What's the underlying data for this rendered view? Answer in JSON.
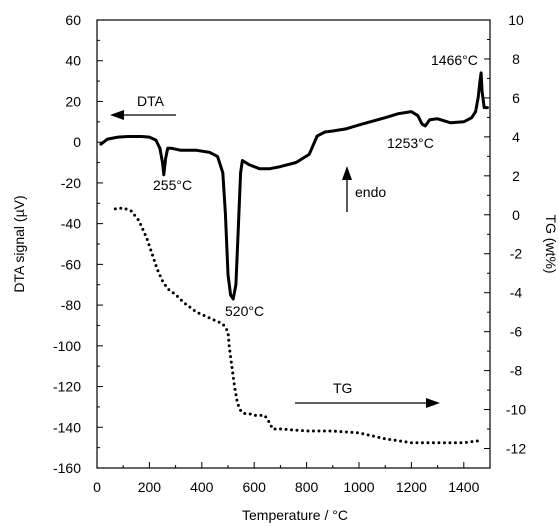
{
  "chart_data": {
    "type": "line",
    "xlabel": "Temperature / °C",
    "ylabel_left": "DTA signal (µV)",
    "ylabel_right": "TG (wt%)",
    "xlim": [
      0,
      1500
    ],
    "ylim_left": [
      -160,
      60
    ],
    "ylim_right": [
      -13,
      10
    ],
    "x_ticks": [
      "0",
      "200",
      "400",
      "600",
      "800",
      "1000",
      "1200",
      "1400"
    ],
    "y_left_ticks": [
      "60",
      "40",
      "20",
      "0",
      "-20",
      "-40",
      "-60",
      "-80",
      "-100",
      "-120",
      "-140",
      "-160"
    ],
    "y_right_ticks": [
      "10",
      "8",
      "6",
      "4",
      "2",
      "0",
      "-2",
      "-4",
      "-6",
      "-8",
      "-10",
      "-12"
    ],
    "grid": false,
    "series": [
      {
        "name": "DTA",
        "axis": "left",
        "style": "solid",
        "x": [
          15,
          40,
          80,
          120,
          170,
          200,
          225,
          240,
          250,
          255,
          262,
          270,
          285,
          320,
          380,
          430,
          460,
          480,
          490,
          500,
          510,
          520,
          530,
          540,
          548,
          555,
          580,
          620,
          660,
          700,
          760,
          810,
          840,
          870,
          900,
          950,
          1000,
          1100,
          1150,
          1200,
          1225,
          1240,
          1253,
          1270,
          1300,
          1350,
          1400,
          1430,
          1445,
          1455,
          1462,
          1466,
          1470,
          1478,
          1490
        ],
        "y": [
          -1,
          1.5,
          2.5,
          2.8,
          2.8,
          2.5,
          1,
          -3,
          -10,
          -16,
          -8,
          -3,
          -3,
          -4,
          -4,
          -5,
          -7,
          -15,
          -35,
          -65,
          -75,
          -77,
          -70,
          -40,
          -15,
          -9,
          -11,
          -13,
          -13,
          -12,
          -10,
          -6,
          3,
          5,
          5.5,
          6.5,
          8.5,
          12,
          14,
          15,
          13,
          9,
          8,
          11,
          11.5,
          9.5,
          10,
          12,
          15,
          22,
          30,
          34,
          25,
          17,
          17
        ]
      },
      {
        "name": "TG",
        "axis": "right",
        "style": "dotted",
        "x": [
          70,
          100,
          130,
          160,
          190,
          210,
          230,
          250,
          270,
          300,
          330,
          380,
          430,
          480,
          500,
          505,
          515,
          525,
          535,
          545,
          560,
          580,
          600,
          620,
          640,
          660,
          670,
          680,
          700,
          800,
          900,
          1000,
          1100,
          1200,
          1300,
          1400,
          1460
        ],
        "y": [
          0.3,
          0.35,
          0.2,
          -0.3,
          -1.2,
          -2.0,
          -2.8,
          -3.4,
          -3.8,
          -4.1,
          -4.5,
          -5.0,
          -5.3,
          -5.6,
          -6.0,
          -6.8,
          -7.8,
          -8.8,
          -9.6,
          -10.0,
          -10.2,
          -10.2,
          -10.3,
          -10.3,
          -10.3,
          -10.7,
          -11.0,
          -11.0,
          -11.0,
          -11.1,
          -11.1,
          -11.2,
          -11.5,
          -11.7,
          -11.7,
          -11.7,
          -11.6
        ]
      }
    ],
    "annotations": [
      {
        "text": "255°C"
      },
      {
        "text": "520°C"
      },
      {
        "text": "1253°C"
      },
      {
        "text": "1466°C"
      },
      {
        "text": "DTA"
      },
      {
        "text": "TG"
      },
      {
        "text": "endo"
      }
    ]
  }
}
